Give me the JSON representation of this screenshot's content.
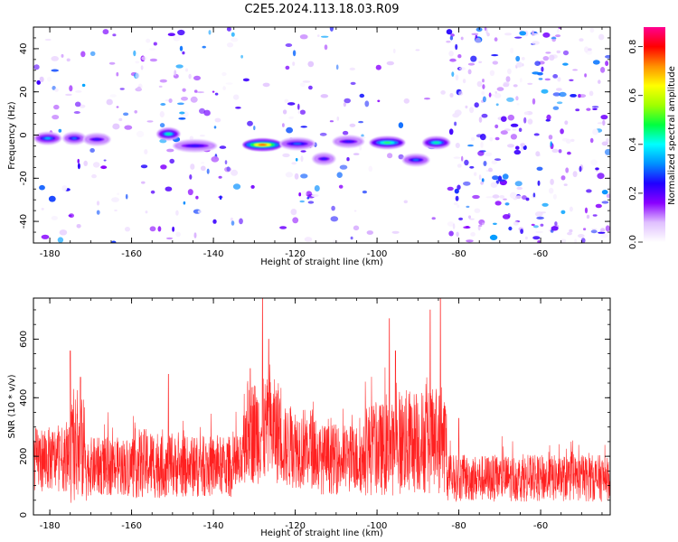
{
  "title": "C2E5.2024.113.18.03.R09",
  "chart_data": [
    {
      "type": "heatmap",
      "name": "spectrogram",
      "xlabel": "Height of straight line (km)",
      "ylabel": "Frequency (Hz)",
      "xlim": [
        -184,
        -43
      ],
      "ylim": [
        -50,
        50
      ],
      "xticks": [
        -180,
        -160,
        -140,
        -120,
        -100,
        -80,
        -60
      ],
      "xtick_labels": [
        "-180",
        "-160",
        "-140",
        "-120",
        "-100",
        "-80",
        "-60"
      ],
      "yticks": [
        -40,
        -20,
        0,
        20,
        40
      ],
      "ytick_labels": [
        "-40",
        "-20",
        "0",
        "20",
        "40"
      ],
      "colorbar": {
        "label": "Normalized spectral amplitude",
        "range": [
          0,
          0.88
        ],
        "ticks": [
          0.0,
          0.2,
          0.4,
          0.6,
          0.8
        ],
        "tick_labels": [
          "0.0",
          "0.2",
          "0.4",
          "0.6",
          "0.8"
        ],
        "colormap": [
          "#ffffff",
          "#e0c0ff",
          "#8a00ff",
          "#2000ff",
          "#0090ff",
          "#00ffff",
          "#00ff40",
          "#a0ff00",
          "#ffff00",
          "#ff9000",
          "#ff0000",
          "#ff0090"
        ]
      },
      "noise_regions": [
        {
          "x": [
            -184,
            -153
          ],
          "density": 0.3
        },
        {
          "x": [
            -153,
            -133
          ],
          "density": 0.45
        },
        {
          "x": [
            -133,
            -123
          ],
          "density": 0.05
        },
        {
          "x": [
            -123,
            -103
          ],
          "density": 0.4
        },
        {
          "x": [
            -103,
            -90
          ],
          "density": 0.12
        },
        {
          "x": [
            -90,
            -83
          ],
          "density": 0.06
        },
        {
          "x": [
            -83,
            -43
          ],
          "density": 0.8
        }
      ],
      "signal_segments": [
        {
          "x": [
            -183,
            -178
          ],
          "freq": -1.5,
          "peak": 0.35
        },
        {
          "x": [
            -176,
            -172
          ],
          "freq": -1.5,
          "peak": 0.3
        },
        {
          "x": [
            -171,
            -166
          ],
          "freq": -2.0,
          "peak": 0.25
        },
        {
          "x": [
            -153,
            -149
          ],
          "freq": 0.5,
          "peak": 0.45
        },
        {
          "x": [
            -149,
            -140
          ],
          "freq": -5.0,
          "peak": 0.25
        },
        {
          "x": [
            -132,
            -124
          ],
          "freq": -4.5,
          "peak": 0.78
        },
        {
          "x": [
            -123,
            -116
          ],
          "freq": -4.0,
          "peak": 0.3
        },
        {
          "x": [
            -115,
            -111
          ],
          "freq": -11.0,
          "peak": 0.25
        },
        {
          "x": [
            -110,
            -104
          ],
          "freq": -3.0,
          "peak": 0.25
        },
        {
          "x": [
            -101,
            -94
          ],
          "freq": -3.5,
          "peak": 0.5
        },
        {
          "x": [
            -93,
            -88
          ],
          "freq": -11.5,
          "peak": 0.3
        },
        {
          "x": [
            -88,
            -83
          ],
          "freq": -3.5,
          "peak": 0.45
        }
      ]
    },
    {
      "type": "line",
      "name": "snr",
      "xlabel": "Height of straight line (km)",
      "ylabel": "SNR (10 * v/v)",
      "xlim": [
        -184,
        -43
      ],
      "ylim": [
        0,
        740
      ],
      "xticks": [
        -180,
        -160,
        -140,
        -120,
        -100,
        -80,
        -60
      ],
      "xtick_labels": [
        "-180",
        "-160",
        "-140",
        "-120",
        "-100",
        "-80",
        "-60"
      ],
      "yticks": [
        0,
        200,
        400,
        600
      ],
      "ytick_labels": [
        "0",
        "200",
        "400",
        "600"
      ],
      "color": "#ff2020",
      "segments": [
        {
          "x": [
            -184,
            -175
          ],
          "mean": 190,
          "spread": 110
        },
        {
          "x": [
            -175,
            -171
          ],
          "mean": 220,
          "spread": 180
        },
        {
          "x": [
            -171,
            -160
          ],
          "mean": 165,
          "spread": 100
        },
        {
          "x": [
            -160,
            -153
          ],
          "mean": 175,
          "spread": 120
        },
        {
          "x": [
            -153,
            -133
          ],
          "mean": 165,
          "spread": 105
        },
        {
          "x": [
            -133,
            -123
          ],
          "mean": 285,
          "spread": 180
        },
        {
          "x": [
            -123,
            -115
          ],
          "mean": 230,
          "spread": 140
        },
        {
          "x": [
            -115,
            -103
          ],
          "mean": 190,
          "spread": 120
        },
        {
          "x": [
            -103,
            -95
          ],
          "mean": 225,
          "spread": 160
        },
        {
          "x": [
            -95,
            -83
          ],
          "mean": 250,
          "spread": 180
        },
        {
          "x": [
            -83,
            -43
          ],
          "mean": 125,
          "spread": 80
        }
      ],
      "peaks": [
        {
          "x": -175.0,
          "y": 560
        },
        {
          "x": -172.5,
          "y": 470
        },
        {
          "x": -151.0,
          "y": 480
        },
        {
          "x": -131.0,
          "y": 500
        },
        {
          "x": -128.0,
          "y": 740
        },
        {
          "x": -126.5,
          "y": 600
        },
        {
          "x": -97.0,
          "y": 670
        },
        {
          "x": -95.5,
          "y": 560
        },
        {
          "x": -87.0,
          "y": 700
        },
        {
          "x": -84.5,
          "y": 740
        },
        {
          "x": -80.0,
          "y": 330
        }
      ]
    }
  ]
}
